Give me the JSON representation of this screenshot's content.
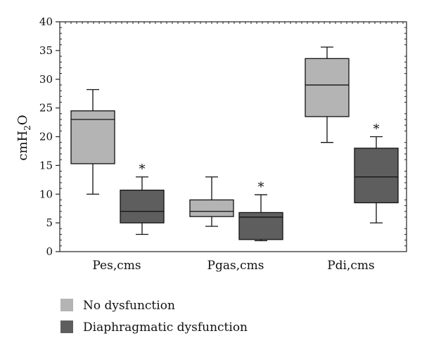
{
  "chart_data": {
    "type": "boxplot",
    "ylabel_main": "cmH",
    "ylabel_sub": "2",
    "ylabel_tail": "O",
    "ylim": [
      0,
      40
    ],
    "yticks": [
      "0",
      "5",
      "10",
      "15",
      "20",
      "25",
      "30",
      "35",
      "40"
    ],
    "categories": [
      "Pes,cms",
      "Pgas,cms",
      "Pdi,cms"
    ],
    "series": [
      {
        "name": "No dysfunction",
        "color": "#b4b4b4",
        "boxes": [
          {
            "min": 10,
            "q1": 15.3,
            "median": 23,
            "q3": 24.5,
            "max": 28.2
          },
          {
            "min": 4.4,
            "q1": 6.1,
            "median": 7,
            "q3": 9,
            "max": 13
          },
          {
            "min": 19,
            "q1": 23.5,
            "median": 29,
            "q3": 33.6,
            "max": 35.6
          }
        ]
      },
      {
        "name": "Diaphragmatic dysfunction",
        "color": "#5e5e5e",
        "boxes": [
          {
            "min": 3,
            "q1": 5,
            "median": 7,
            "q3": 10.7,
            "max": 13
          },
          {
            "min": 1.9,
            "q1": 2.1,
            "median": 6,
            "q3": 6.8,
            "max": 9.9
          },
          {
            "min": 5,
            "q1": 8.5,
            "median": 13,
            "q3": 18,
            "max": 20
          }
        ]
      }
    ],
    "annotations": [
      "*",
      "*",
      "*"
    ],
    "legend_position": "bottom-left",
    "grid": false
  }
}
